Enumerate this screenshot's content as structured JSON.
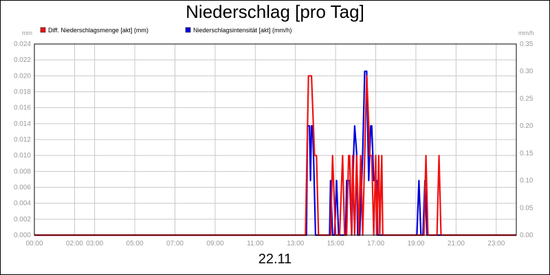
{
  "chart_data": {
    "type": "line",
    "title": "Niederschlag [pro Tag]",
    "date_label": "22.11",
    "y_left": {
      "unit": "mm",
      "min": 0,
      "max": 0.024,
      "ticks": [
        "0.024",
        "0.022",
        "0.020",
        "0.018",
        "0.016",
        "0.014",
        "0.012",
        "0.010",
        "0.008",
        "0.006",
        "0.004",
        "0.002",
        "0.000"
      ]
    },
    "y_right": {
      "unit": "mm/h",
      "min": 0,
      "max": 0.35,
      "ticks": [
        "0.35",
        "0.30",
        "0.25",
        "0.20",
        "0.15",
        "0.10",
        "0.05",
        "0.00"
      ]
    },
    "x_axis": {
      "min_hour": 0,
      "max_hour": 24,
      "ticks": [
        {
          "label": "00:00",
          "hour": 0
        },
        {
          "label": "02:00",
          "hour": 2
        },
        {
          "label": "03:00",
          "hour": 3
        },
        {
          "label": "05:00",
          "hour": 5
        },
        {
          "label": "07:00",
          "hour": 7
        },
        {
          "label": "09:00",
          "hour": 9
        },
        {
          "label": "11:00",
          "hour": 11
        },
        {
          "label": "13:00",
          "hour": 13
        },
        {
          "label": "15:00",
          "hour": 15
        },
        {
          "label": "17:00",
          "hour": 17
        },
        {
          "label": "19:00",
          "hour": 19
        },
        {
          "label": "21:00",
          "hour": 21
        },
        {
          "label": "23:00",
          "hour": 23
        }
      ]
    },
    "grid": true,
    "legend_position": "top-left",
    "series": [
      {
        "name": "Niederschlagsintensität [akt] (mm/h)",
        "axis": "right",
        "color": "#0000dd",
        "x": [
          0,
          13.55,
          13.6,
          13.7,
          13.75,
          13.8,
          13.85,
          13.9,
          14.0,
          14.7,
          14.75,
          14.85,
          14.95,
          15.05,
          15.15,
          15.5,
          15.55,
          15.7,
          15.8,
          15.9,
          15.95,
          16.05,
          16.1,
          16.2,
          16.35,
          16.45,
          16.55,
          16.65,
          16.75,
          16.8,
          16.9,
          16.95,
          17.05,
          17.1,
          19.05,
          19.15,
          19.25,
          19.35,
          19.45,
          19.55,
          24
        ],
        "y": [
          0,
          0,
          0.2,
          0.2,
          0.1,
          0.2,
          0.2,
          0.15,
          0,
          0,
          0.1,
          0,
          0,
          0.1,
          0,
          0,
          0.1,
          0.1,
          0,
          0.15,
          0.2,
          0.15,
          0,
          0,
          0.15,
          0.3,
          0.3,
          0.1,
          0.2,
          0.2,
          0.1,
          0.1,
          0.1,
          0,
          0,
          0.1,
          0,
          0,
          0.1,
          0,
          0
        ]
      },
      {
        "name": "Diff. Niederschlagsmenge [akt] (mm)",
        "axis": "left",
        "color": "#ee1111",
        "x": [
          0,
          13.5,
          13.65,
          13.8,
          13.95,
          14.05,
          14.15,
          14.75,
          14.85,
          15.0,
          15.1,
          15.2,
          15.35,
          15.45,
          15.55,
          15.65,
          15.7,
          15.8,
          15.85,
          15.95,
          16.05,
          16.15,
          16.25,
          16.35,
          16.45,
          16.55,
          16.65,
          16.7,
          16.8,
          16.9,
          17.0,
          17.05,
          17.15,
          17.2,
          17.3,
          17.35,
          19.25,
          19.4,
          19.5,
          19.6,
          20.05,
          20.15,
          20.25,
          24
        ],
        "y": [
          0,
          0,
          0.02,
          0.02,
          0.01,
          0.01,
          0,
          0,
          0.01,
          0,
          0,
          0,
          0.01,
          0,
          0,
          0.01,
          0.01,
          0,
          0.01,
          0,
          0.01,
          0,
          0.01,
          0,
          0.01,
          0.02,
          0.014,
          0.01,
          0.01,
          0,
          0.01,
          0,
          0.01,
          0,
          0.01,
          0,
          0,
          0,
          0.01,
          0,
          0,
          0.01,
          0,
          0
        ]
      }
    ]
  }
}
